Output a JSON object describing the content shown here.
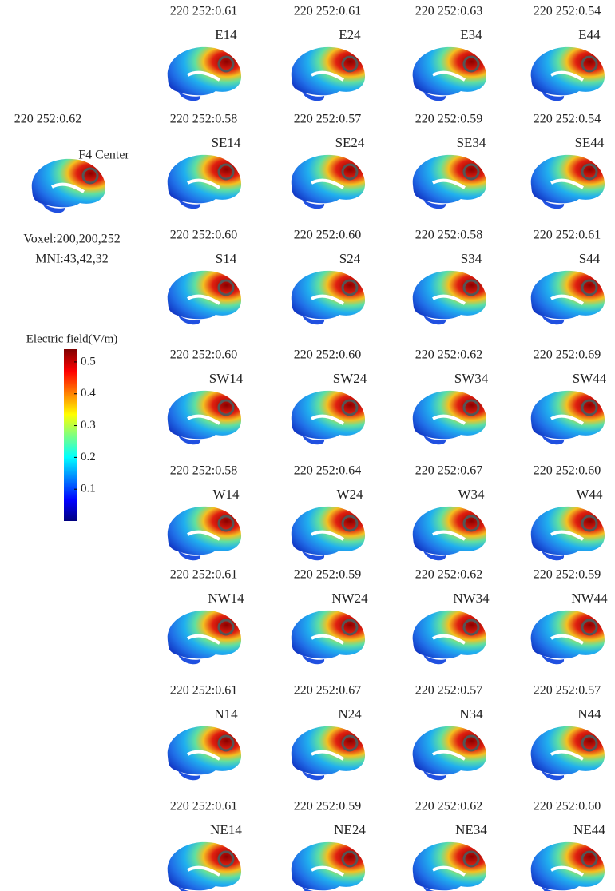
{
  "center": {
    "score": "220 252:0.62",
    "label": "F4 Center",
    "voxel": "Voxel:200,200,252",
    "mni": "MNI:43,42,32"
  },
  "colorbar": {
    "title": "Electric field(V/m)",
    "lim": [
      0,
      0.54
    ],
    "ticks": [
      0.1,
      0.2,
      0.3,
      0.4,
      0.5
    ]
  },
  "grid": {
    "rows": [
      {
        "cells": [
          {
            "score": "220 252:0.61",
            "label": "E14"
          },
          {
            "score": "220 252:0.61",
            "label": "E24"
          },
          {
            "score": "220 252:0.63",
            "label": "E34"
          },
          {
            "score": "220 252:0.54",
            "label": "E44"
          }
        ]
      },
      {
        "cells": [
          {
            "score": "220 252:0.58",
            "label": "SE14"
          },
          {
            "score": "220 252:0.57",
            "label": "SE24"
          },
          {
            "score": "220 252:0.59",
            "label": "SE34"
          },
          {
            "score": "220 252:0.54",
            "label": "SE44"
          }
        ]
      },
      {
        "cells": [
          {
            "score": "220 252:0.60",
            "label": "S14"
          },
          {
            "score": "220 252:0.60",
            "label": "S24"
          },
          {
            "score": "220 252:0.58",
            "label": "S34"
          },
          {
            "score": "220 252:0.61",
            "label": "S44"
          }
        ]
      },
      {
        "cells": [
          {
            "score": "220 252:0.60",
            "label": "SW14"
          },
          {
            "score": "220 252:0.60",
            "label": "SW24"
          },
          {
            "score": "220 252:0.62",
            "label": "SW34"
          },
          {
            "score": "220 252:0.69",
            "label": "SW44"
          }
        ]
      },
      {
        "cells": [
          {
            "score": "220 252:0.58",
            "label": "W14"
          },
          {
            "score": "220 252:0.64",
            "label": "W24"
          },
          {
            "score": "220 252:0.67",
            "label": "W34"
          },
          {
            "score": "220 252:0.60",
            "label": "W44"
          }
        ]
      },
      {
        "cells": [
          {
            "score": "220 252:0.61",
            "label": "NW14"
          },
          {
            "score": "220 252:0.59",
            "label": "NW24"
          },
          {
            "score": "220 252:0.62",
            "label": "NW34"
          },
          {
            "score": "220 252:0.59",
            "label": "NW44"
          }
        ]
      },
      {
        "cells": [
          {
            "score": "220 252:0.61",
            "label": "N14"
          },
          {
            "score": "220 252:0.67",
            "label": "N24"
          },
          {
            "score": "220 252:0.57",
            "label": "N34"
          },
          {
            "score": "220 252:0.57",
            "label": "N44"
          }
        ]
      },
      {
        "cells": [
          {
            "score": "220 252:0.61",
            "label": "NE14"
          },
          {
            "score": "220 252:0.59",
            "label": "NE24"
          },
          {
            "score": "220 252:0.62",
            "label": "NE34"
          },
          {
            "score": "220 252:0.60",
            "label": "NE44"
          }
        ]
      }
    ]
  }
}
